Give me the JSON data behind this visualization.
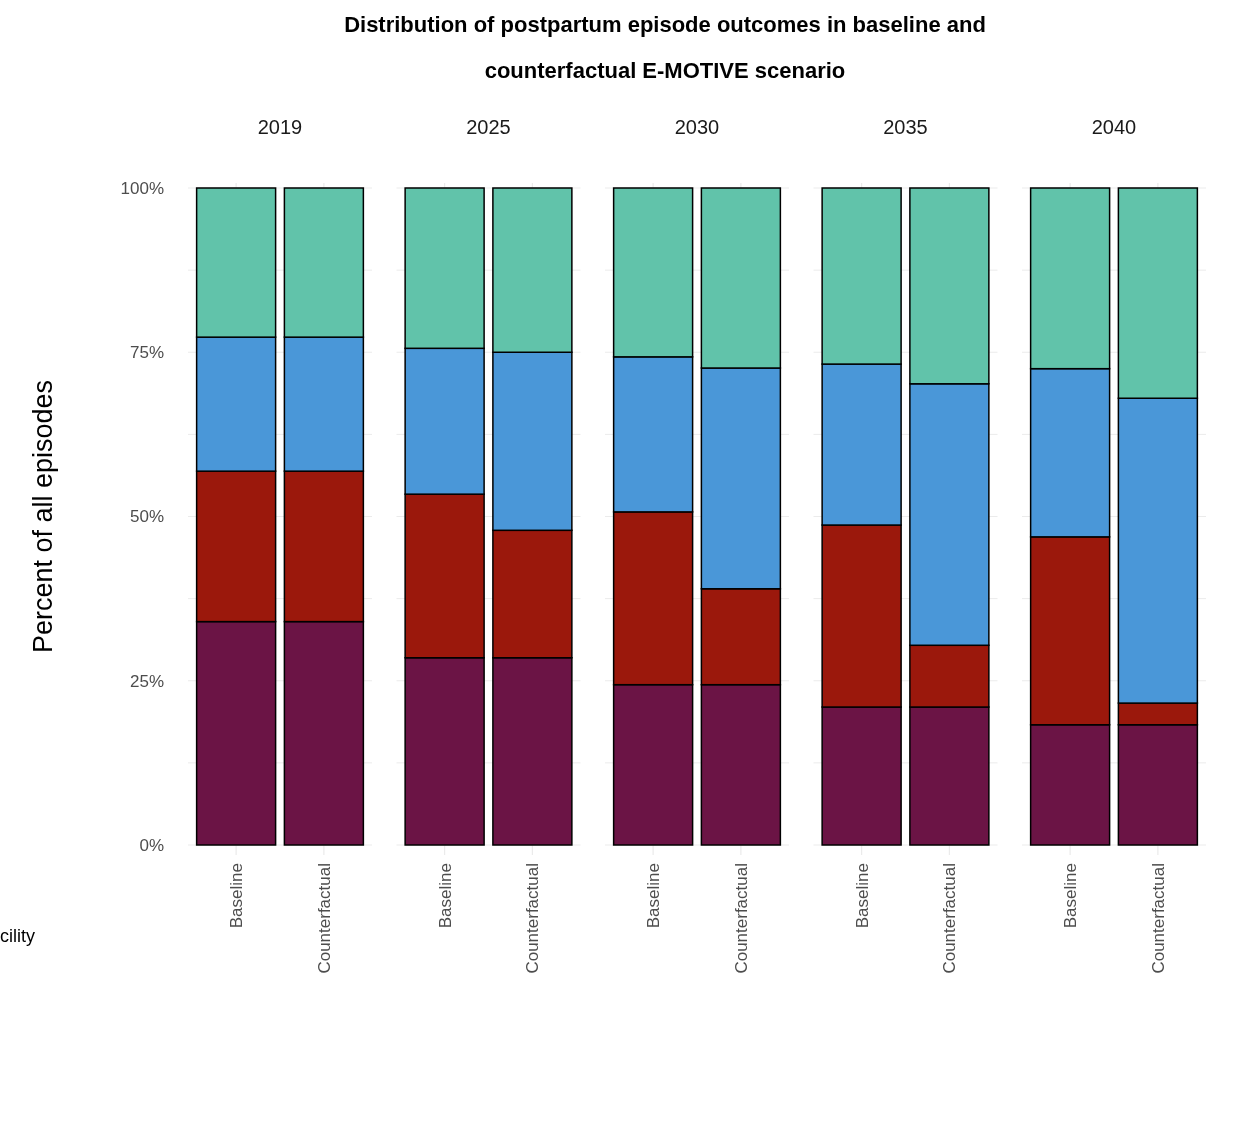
{
  "chart_data": [
    {
      "type": "bar",
      "stacked": true,
      "title": "2019",
      "annotations": [
        "Distribution of postpartum episode outcomes in baseline and counterfactual E-MOTIVE scenario",
        "cility"
      ],
      "ylabel": "Percent of all episodes",
      "categories": [
        "Baseline",
        "Counterfactual"
      ],
      "ylim": [
        0,
        100
      ],
      "yticks": [
        {
          "value": 0,
          "label": "0%"
        },
        {
          "value": 12.5,
          "label": null
        },
        {
          "value": 25,
          "label": "25%"
        },
        {
          "value": 37.5,
          "label": null
        },
        {
          "value": 50,
          "label": "50%"
        },
        {
          "value": 62.5,
          "label": null
        },
        {
          "value": 75,
          "label": "75%"
        },
        {
          "value": 87.5,
          "label": null
        },
        {
          "value": 100,
          "label": "100%"
        }
      ],
      "grid": true,
      "series": [
        {
          "color": "#6b1445",
          "values": [
            34.0,
            34.0
          ]
        },
        {
          "color": "#9b180c",
          "values": [
            22.9,
            22.9
          ]
        },
        {
          "color": "#4a97d8",
          "values": [
            20.4,
            20.4
          ]
        },
        {
          "color": "#61c3aa",
          "values": [
            22.7,
            22.7
          ]
        }
      ]
    },
    {
      "type": "bar",
      "stacked": true,
      "title": "2025",
      "categories": [
        "Baseline",
        "Counterfactual"
      ],
      "ylim": [
        0,
        100
      ],
      "yticks": [
        {
          "value": 0,
          "label": null
        },
        {
          "value": 12.5,
          "label": null
        },
        {
          "value": 25,
          "label": null
        },
        {
          "value": 37.5,
          "label": null
        },
        {
          "value": 50,
          "label": null
        },
        {
          "value": 62.5,
          "label": null
        },
        {
          "value": 75,
          "label": null
        },
        {
          "value": 87.5,
          "label": null
        },
        {
          "value": 100,
          "label": null
        }
      ],
      "tick_labels": "x",
      "grid": true,
      "series": [
        {
          "color": "#6b1445",
          "values": [
            28.5,
            28.5
          ]
        },
        {
          "color": "#9b180c",
          "values": [
            24.9,
            19.4
          ]
        },
        {
          "color": "#4a97d8",
          "values": [
            22.2,
            27.1
          ]
        },
        {
          "color": "#61c3aa",
          "values": [
            24.4,
            25.0
          ]
        }
      ]
    },
    {
      "type": "bar",
      "stacked": true,
      "title": "2030",
      "categories": [
        "Baseline",
        "Counterfactual"
      ],
      "ylim": [
        0,
        100
      ],
      "yticks": [
        {
          "value": 0,
          "label": null
        },
        {
          "value": 12.5,
          "label": null
        },
        {
          "value": 25,
          "label": null
        },
        {
          "value": 37.5,
          "label": null
        },
        {
          "value": 50,
          "label": null
        },
        {
          "value": 62.5,
          "label": null
        },
        {
          "value": 75,
          "label": null
        },
        {
          "value": 87.5,
          "label": null
        },
        {
          "value": 100,
          "label": null
        }
      ],
      "tick_labels": "x",
      "grid": true,
      "series": [
        {
          "color": "#6b1445",
          "values": [
            24.4,
            24.4
          ]
        },
        {
          "color": "#9b180c",
          "values": [
            26.3,
            14.6
          ]
        },
        {
          "color": "#4a97d8",
          "values": [
            23.6,
            33.6
          ]
        },
        {
          "color": "#61c3aa",
          "values": [
            25.7,
            27.4
          ]
        }
      ]
    },
    {
      "type": "bar",
      "stacked": true,
      "title": "2035",
      "categories": [
        "Baseline",
        "Counterfactual"
      ],
      "ylim": [
        0,
        100
      ],
      "yticks": [
        {
          "value": 0,
          "label": null
        },
        {
          "value": 12.5,
          "label": null
        },
        {
          "value": 25,
          "label": null
        },
        {
          "value": 37.5,
          "label": null
        },
        {
          "value": 50,
          "label": null
        },
        {
          "value": 62.5,
          "label": null
        },
        {
          "value": 75,
          "label": null
        },
        {
          "value": 87.5,
          "label": null
        },
        {
          "value": 100,
          "label": null
        }
      ],
      "tick_labels": "x",
      "grid": true,
      "series": [
        {
          "color": "#6b1445",
          "values": [
            21.0,
            21.0
          ]
        },
        {
          "color": "#9b180c",
          "values": [
            27.7,
            9.4
          ]
        },
        {
          "color": "#4a97d8",
          "values": [
            24.5,
            39.8
          ]
        },
        {
          "color": "#61c3aa",
          "values": [
            26.8,
            29.8
          ]
        }
      ]
    },
    {
      "type": "bar",
      "stacked": true,
      "title": "2040",
      "categories": [
        "Baseline",
        "Counterfactual"
      ],
      "ylim": [
        0,
        100
      ],
      "yticks": [
        {
          "value": 0,
          "label": null
        },
        {
          "value": 12.5,
          "label": null
        },
        {
          "value": 25,
          "label": null
        },
        {
          "value": 37.5,
          "label": null
        },
        {
          "value": 50,
          "label": null
        },
        {
          "value": 62.5,
          "label": null
        },
        {
          "value": 75,
          "label": null
        },
        {
          "value": 87.5,
          "label": null
        },
        {
          "value": 100,
          "label": null
        }
      ],
      "tick_labels": "x",
      "grid": true,
      "series": [
        {
          "color": "#6b1445",
          "values": [
            18.3,
            18.3
          ]
        },
        {
          "color": "#9b180c",
          "values": [
            28.6,
            3.3
          ]
        },
        {
          "color": "#4a97d8",
          "values": [
            25.6,
            46.4
          ]
        },
        {
          "color": "#61c3aa",
          "values": [
            27.5,
            32.0
          ]
        }
      ]
    }
  ]
}
